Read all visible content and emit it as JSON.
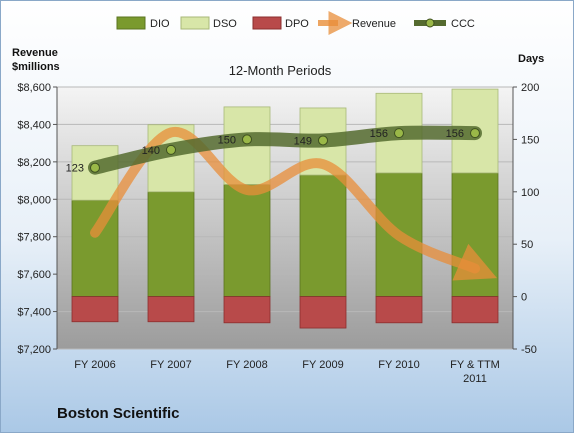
{
  "chart_data": {
    "type": "bar",
    "title": "12-Month Periods",
    "company": "Boston Scientific",
    "left_axis": {
      "label_line1": "Revenue",
      "label_line2": "$millions",
      "min": 7200,
      "max": 8600,
      "step": 200,
      "ticks": [
        "$7,200",
        "$7,400",
        "$7,600",
        "$7,800",
        "$8,000",
        "$8,200",
        "$8,400",
        "$8,600"
      ]
    },
    "right_axis": {
      "label": "Days",
      "min": -50,
      "max": 200,
      "step": 50,
      "ticks": [
        "-50",
        "0",
        "50",
        "100",
        "150",
        "200"
      ]
    },
    "categories": [
      {
        "line1": "FY 2006",
        "line2": ""
      },
      {
        "line1": "FY 2007",
        "line2": ""
      },
      {
        "line1": "FY 2008",
        "line2": ""
      },
      {
        "line1": "FY 2009",
        "line2": ""
      },
      {
        "line1": "FY 2010",
        "line2": ""
      },
      {
        "line1": "FY & TTM",
        "line2": "2011"
      }
    ],
    "series": [
      {
        "name": "DIO",
        "color": "#7a9a2e",
        "axis": "right",
        "values": [
          92,
          100,
          107,
          116,
          118,
          118
        ]
      },
      {
        "name": "DSO",
        "color": "#d8e6a8",
        "axis": "right",
        "values": [
          52,
          64,
          74,
          64,
          76,
          80
        ]
      },
      {
        "name": "DPO",
        "color": "#b84a4a",
        "axis": "right",
        "values": [
          -24,
          -24,
          -25,
          -30,
          -25,
          -25
        ]
      },
      {
        "name": "Revenue",
        "color": "#e88e3a",
        "axis": "left",
        "values": [
          7821,
          8357,
          8050,
          8188,
          7806,
          7630
        ]
      },
      {
        "name": "CCC",
        "color": "#556b2f",
        "axis": "right",
        "values": [
          123,
          140,
          150,
          149,
          156,
          156
        ]
      }
    ],
    "ccc_labels": [
      "123",
      "140",
      "150",
      "149",
      "156",
      "156"
    ],
    "legend_position": "top",
    "grid": true
  }
}
